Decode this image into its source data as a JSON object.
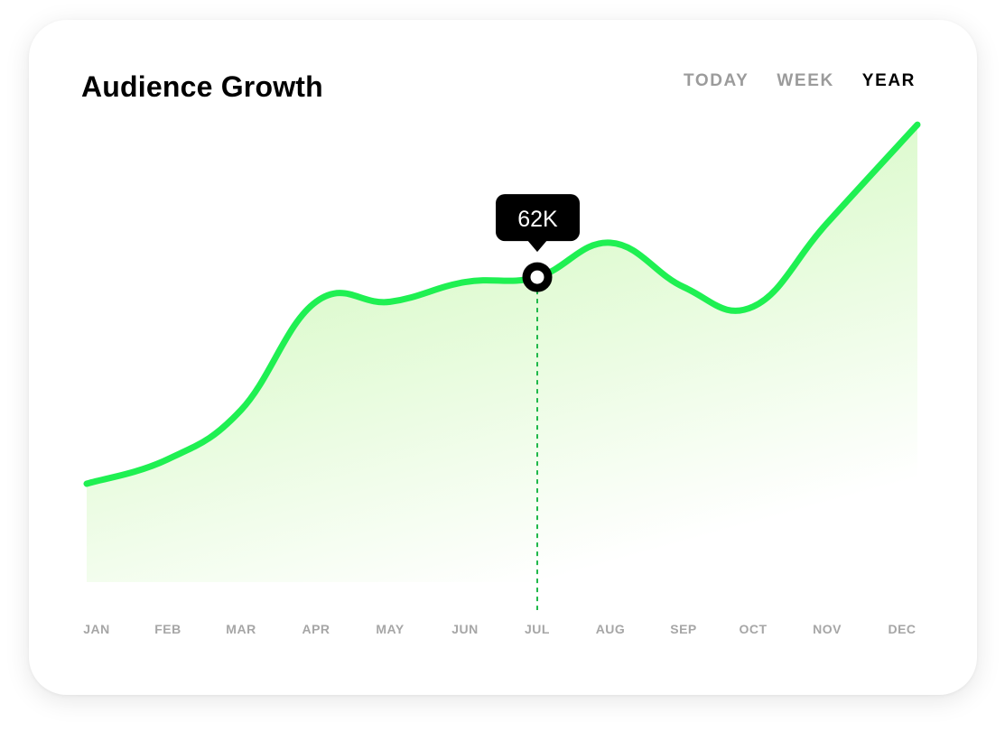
{
  "header": {
    "title": "Audience Growth",
    "tabs": [
      {
        "label": "TODAY",
        "active": false
      },
      {
        "label": "WEEK",
        "active": false
      },
      {
        "label": "YEAR",
        "active": true
      }
    ]
  },
  "colors": {
    "line": "#1ff052",
    "fill": "#c8f7b0",
    "marker": "#000000",
    "guide": "#1fb84a",
    "tab_active": "#000000",
    "tab_inactive": "#9b9b9b"
  },
  "chart_data": {
    "type": "area",
    "categories": [
      "JAN",
      "FEB",
      "MAR",
      "APR",
      "MAY",
      "JUN",
      "JUL",
      "AUG",
      "SEP",
      "OCT",
      "NOV",
      "DEC"
    ],
    "values": [
      20,
      25,
      35,
      57,
      57,
      61,
      62,
      69,
      60,
      56,
      73,
      93
    ],
    "ylim": [
      0,
      100
    ],
    "highlight": {
      "index": 6,
      "label": "62K"
    },
    "grid": false,
    "title": "",
    "xlabel": "",
    "ylabel": ""
  }
}
